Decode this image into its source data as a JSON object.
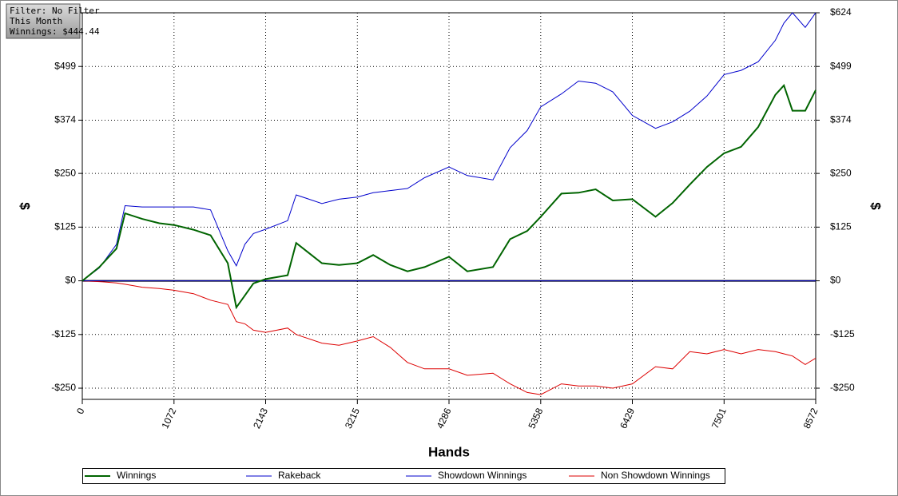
{
  "info_box": [
    "Filter: No Filter",
    "This Month",
    "Winnings: $444.44"
  ],
  "chart_data": {
    "type": "line",
    "xlabel": "Hands",
    "ylabel": "$",
    "xlim": [
      0,
      8572
    ],
    "xticks": [
      0,
      1072,
      2143,
      3215,
      4286,
      5358,
      6429,
      7501,
      8572
    ],
    "ylim": [
      -276,
      624
    ],
    "yticks": [
      {
        "value": -250,
        "label": "-$250"
      },
      {
        "value": -125,
        "label": "-$125"
      },
      {
        "value": 0,
        "label": "$0"
      },
      {
        "value": 125,
        "label": "$125"
      },
      {
        "value": 250,
        "label": "$250"
      },
      {
        "value": 374,
        "label": "$374"
      },
      {
        "value": 499,
        "label": "$499"
      },
      {
        "value": 624,
        "label": "$624"
      }
    ],
    "grid": true,
    "x": [
      0,
      200,
      400,
      500,
      700,
      900,
      1072,
      1300,
      1500,
      1700,
      1800,
      1900,
      2000,
      2143,
      2400,
      2500,
      2800,
      3000,
      3215,
      3400,
      3600,
      3800,
      4000,
      4286,
      4500,
      4800,
      5000,
      5200,
      5358,
      5600,
      5800,
      6000,
      6200,
      6429,
      6700,
      6900,
      7100,
      7300,
      7501,
      7700,
      7900,
      8100,
      8200,
      8300,
      8450,
      8572
    ],
    "series": [
      {
        "name": "Winnings",
        "color": "#006400",
        "width": 2,
        "values": [
          0,
          32,
          75,
          157,
          144,
          134,
          130,
          119,
          106,
          41,
          -62,
          -34,
          -6,
          4,
          13,
          88,
          41,
          37,
          41,
          60,
          37,
          22,
          32,
          56,
          22,
          32,
          97,
          116,
          149,
          203,
          205,
          213,
          187,
          190,
          149,
          181,
          224,
          265,
          297,
          312,
          358,
          433,
          455,
          396,
          396,
          444
        ]
      },
      {
        "name": "Rakeback",
        "color": "#0000cc",
        "width": 1,
        "values": [
          0,
          0,
          0,
          0,
          0,
          0,
          0,
          0,
          0,
          0,
          0,
          0,
          0,
          0,
          0,
          0,
          0,
          0,
          0,
          0,
          0,
          0,
          0,
          0,
          0,
          0,
          0,
          0,
          0,
          0,
          0,
          0,
          0,
          0,
          0,
          0,
          0,
          0,
          0,
          0,
          0,
          0,
          0,
          0,
          0,
          0
        ]
      },
      {
        "name": "Showdown Winnings",
        "color": "#0000cc",
        "width": 1,
        "values": [
          0,
          30,
          85,
          175,
          172,
          172,
          172,
          172,
          165,
          70,
          35,
          85,
          110,
          120,
          140,
          200,
          180,
          190,
          195,
          205,
          210,
          215,
          240,
          265,
          245,
          235,
          310,
          350,
          405,
          435,
          465,
          460,
          440,
          385,
          355,
          370,
          395,
          430,
          480,
          490,
          510,
          560,
          600,
          624,
          590,
          624
        ]
      },
      {
        "name": "Non Showdown Winnings",
        "color": "#dd0000",
        "width": 1,
        "values": [
          0,
          -2,
          -5,
          -8,
          -15,
          -18,
          -22,
          -30,
          -45,
          -55,
          -95,
          -100,
          -115,
          -120,
          -110,
          -125,
          -145,
          -150,
          -140,
          -130,
          -155,
          -190,
          -205,
          -205,
          -220,
          -215,
          -240,
          -260,
          -265,
          -240,
          -245,
          -245,
          -250,
          -240,
          -200,
          -205,
          -165,
          -170,
          -160,
          -170,
          -160,
          -165,
          -170,
          -175,
          -195,
          -180
        ]
      }
    ],
    "zero_line": true
  }
}
